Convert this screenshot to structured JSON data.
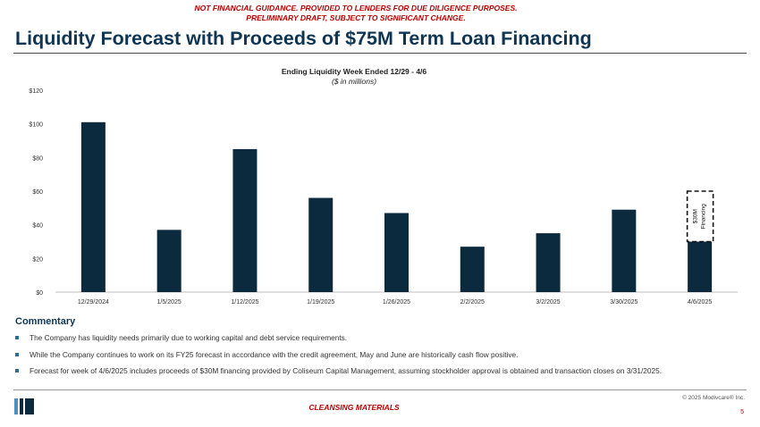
{
  "disclaimer": {
    "line1": "NOT FINANCIAL GUIDANCE. PROVIDED TO LENDERS FOR DUE DILIGENCE PURPOSES.",
    "line2": "PRELIMINARY DRAFT, SUBJECT TO SIGNIFICANT CHANGE."
  },
  "page_title": "Liquidity Forecast with Proceeds of $75M Term Loan Financing",
  "chart_data": {
    "type": "bar",
    "title": "Ending Liquidity Week Ended 12/29 - 4/6",
    "subtitle": "($ in millions)",
    "categories": [
      "12/29/2024",
      "1/5/2025",
      "1/12/2025",
      "1/19/2025",
      "1/26/2025",
      "2/2/2025",
      "3/2/2025",
      "3/30/2025",
      "4/6/2025"
    ],
    "values": [
      101,
      37,
      85,
      56,
      47,
      27,
      35,
      49,
      32
    ],
    "ylim": [
      0,
      120
    ],
    "yticks": [
      0,
      20,
      40,
      60,
      80,
      100,
      120
    ],
    "ytick_labels": [
      "$0",
      "$20",
      "$40",
      "$60",
      "$80",
      "$100",
      "$120"
    ],
    "xlabel": "",
    "ylabel": "",
    "grid": false,
    "bar_color": "#0c2a3d",
    "annotation": {
      "category": "4/6/2025",
      "from": 30,
      "to": 60,
      "line1": "$30M",
      "line2": "Financing",
      "style": "dashed box"
    }
  },
  "commentary": {
    "title": "Commentary",
    "bullets": [
      "The Company has liquidity needs primarily due to working capital and debt service requirements.",
      "While the Company continues to work on its FY25 forecast in accordance with the credit agreement, May and June are historically cash flow positive.",
      "Forecast for week of 4/6/2025 includes proceeds of $30M financing provided by Coliseum Capital Management, assuming stockholder approval is obtained and transaction closes on 3/31/2025."
    ]
  },
  "footer": {
    "copyright": "© 2025 Modivcare® Inc.",
    "page_number": "5",
    "cleansing": "CLEANSING MATERIALS"
  },
  "colors": {
    "title": "#0e3654",
    "disclaimer": "#c00000",
    "bullet": "#2c6e9b",
    "logo_light": "#4a90c4",
    "logo_dark": "#0c2a3d"
  }
}
